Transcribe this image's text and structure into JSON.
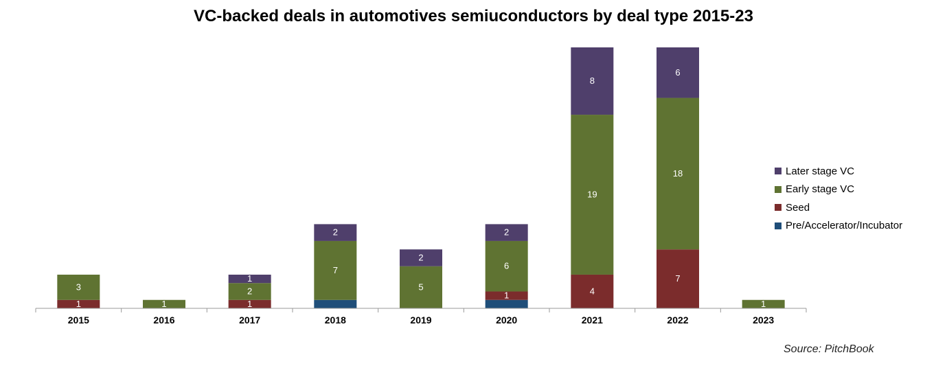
{
  "chart_data": {
    "type": "bar",
    "stacked": true,
    "title": "VC-backed deals in automotives semiuconductors by deal type 2015-23",
    "categories": [
      "2015",
      "2016",
      "2017",
      "2018",
      "2019",
      "2020",
      "2021",
      "2022",
      "2023"
    ],
    "series": [
      {
        "name": "Pre/Accelerator/Incubator",
        "color": "#1f4e79",
        "values": [
          0,
          0,
          0,
          1,
          0,
          1,
          0,
          0,
          0
        ],
        "labels": [
          "",
          "",
          "",
          "",
          "",
          "",
          "",
          "",
          ""
        ]
      },
      {
        "name": "Seed",
        "color": "#7b2c2c",
        "values": [
          1,
          0,
          1,
          0,
          0,
          1,
          4,
          7,
          0
        ],
        "labels": [
          "1",
          "",
          "1",
          "",
          "",
          "1",
          "4",
          "7",
          ""
        ]
      },
      {
        "name": "Early stage VC",
        "color": "#5f7332",
        "values": [
          3,
          1,
          2,
          7,
          5,
          6,
          19,
          18,
          1
        ],
        "labels": [
          "3",
          "1",
          "2",
          "7",
          "5",
          "6",
          "19",
          "18",
          "1"
        ]
      },
      {
        "name": "Later stage VC",
        "color": "#4f3f6b",
        "values": [
          0,
          0,
          1,
          2,
          2,
          2,
          8,
          6,
          0
        ],
        "labels": [
          "",
          "",
          "1",
          "2",
          "2",
          "2",
          "8",
          "6",
          ""
        ]
      }
    ],
    "legend_position": "right",
    "legend_order": [
      "Later stage VC",
      "Early stage VC",
      "Seed",
      "Pre/Accelerator/Incubator"
    ],
    "grid": false,
    "ylim": [
      0,
      31
    ],
    "source": "Source: PitchBook"
  }
}
